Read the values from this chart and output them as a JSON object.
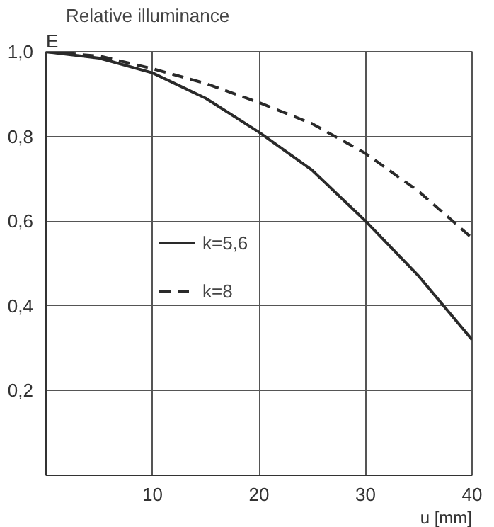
{
  "chart_data": {
    "type": "line",
    "title": "Relative illuminance",
    "ylabel": "E",
    "xlabel": "u [mm]",
    "x": [
      0,
      5,
      10,
      15,
      20,
      25,
      30,
      35,
      40
    ],
    "series": [
      {
        "name": "k=5,6",
        "color": "#2a2a2a",
        "line_style": "solid",
        "values": [
          1.0,
          0.985,
          0.95,
          0.89,
          0.81,
          0.72,
          0.6,
          0.47,
          0.32
        ]
      },
      {
        "name": "k=8",
        "color": "#2a2a2a",
        "line_style": "dashed",
        "values": [
          1.0,
          0.99,
          0.96,
          0.925,
          0.88,
          0.83,
          0.76,
          0.67,
          0.56
        ]
      }
    ],
    "xlim": [
      0,
      40
    ],
    "ylim": [
      0,
      1
    ],
    "xticks": [
      10,
      20,
      30,
      40
    ],
    "yticks": [
      {
        "value": 0.2,
        "label": "0,2"
      },
      {
        "value": 0.4,
        "label": "0,4"
      },
      {
        "value": 0.6,
        "label": "0,6"
      },
      {
        "value": 0.8,
        "label": "0,8"
      },
      {
        "value": 1.0,
        "label": "1,0"
      }
    ],
    "grid": true,
    "legend": "left",
    "marker": "none"
  }
}
